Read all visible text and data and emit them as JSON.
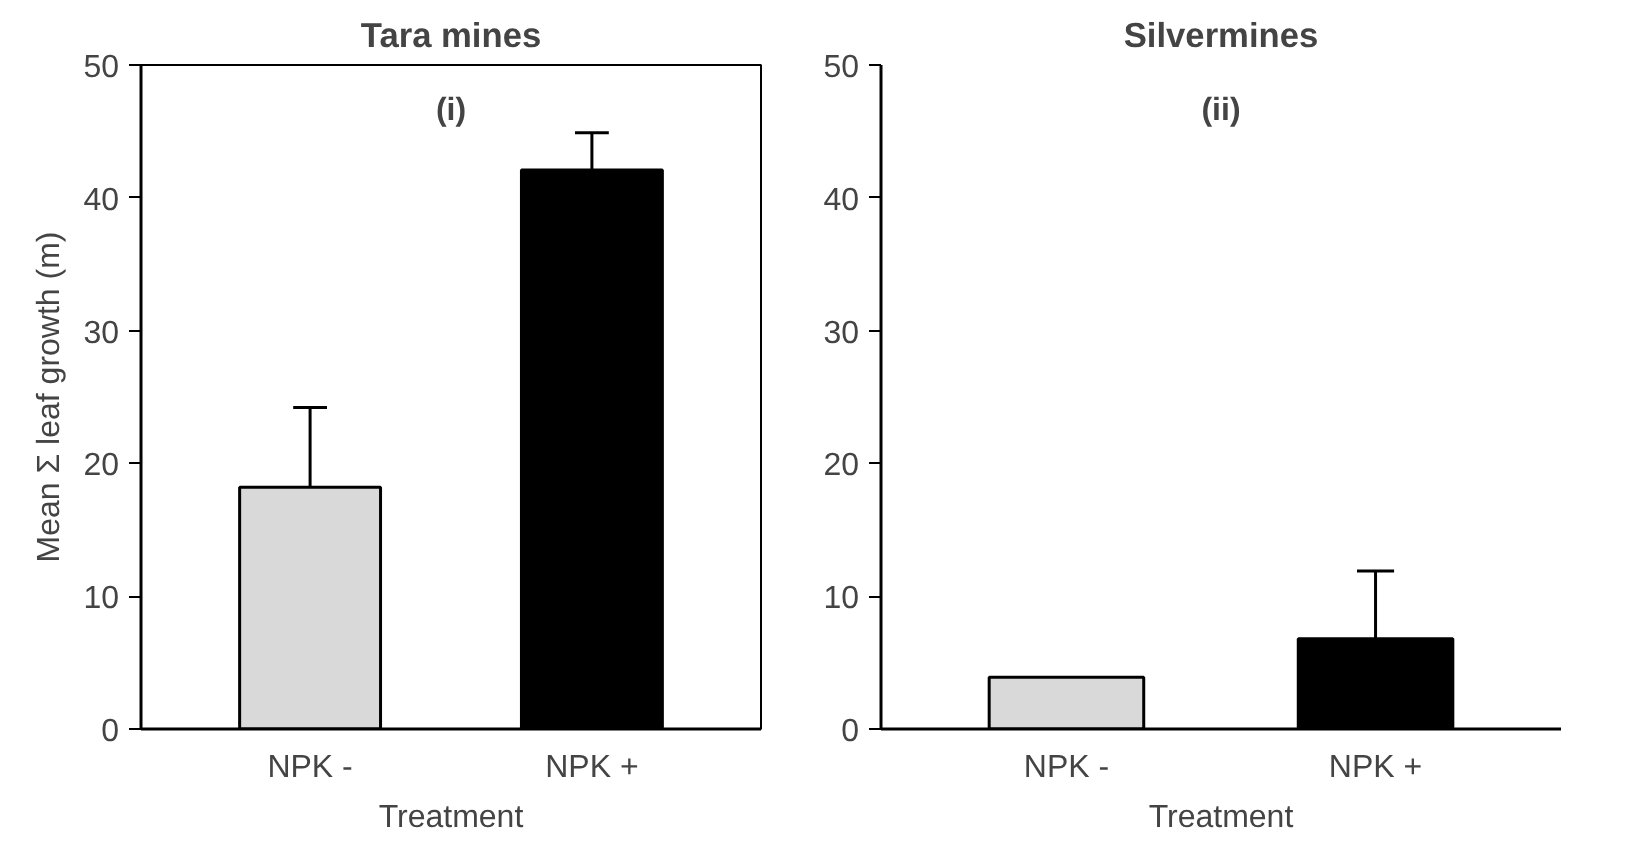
{
  "chart_data": [
    {
      "type": "bar",
      "title": "Tara mines",
      "xlabel": "Treatment",
      "ylabel": "Mean Σ leaf growth (m)",
      "categories": [
        "NPK -",
        "NPK +"
      ],
      "values": [
        18.2,
        42.1
      ],
      "colors": [
        "#d9d9d9",
        "#000000"
      ],
      "errors": [
        [
          18.2,
          24.2
        ],
        [
          42.1,
          44.9
        ]
      ],
      "ylim": [
        0,
        50
      ],
      "yticks": [
        0,
        10,
        20,
        30,
        40,
        50
      ],
      "annotations": [
        "(i)"
      ]
    },
    {
      "type": "bar",
      "title": "Silvermines",
      "xlabel": "Treatment",
      "categories": [
        "NPK -",
        "NPK +"
      ],
      "values": [
        3.9,
        6.8
      ],
      "colors": [
        "#d9d9d9",
        "#000000"
      ],
      "errors": [
        null,
        [
          6.8,
          11.9
        ]
      ],
      "ylim": [
        0,
        50
      ],
      "yticks": [
        0,
        10,
        20,
        30,
        40,
        50
      ],
      "annotations": [
        "(ii)"
      ]
    }
  ]
}
